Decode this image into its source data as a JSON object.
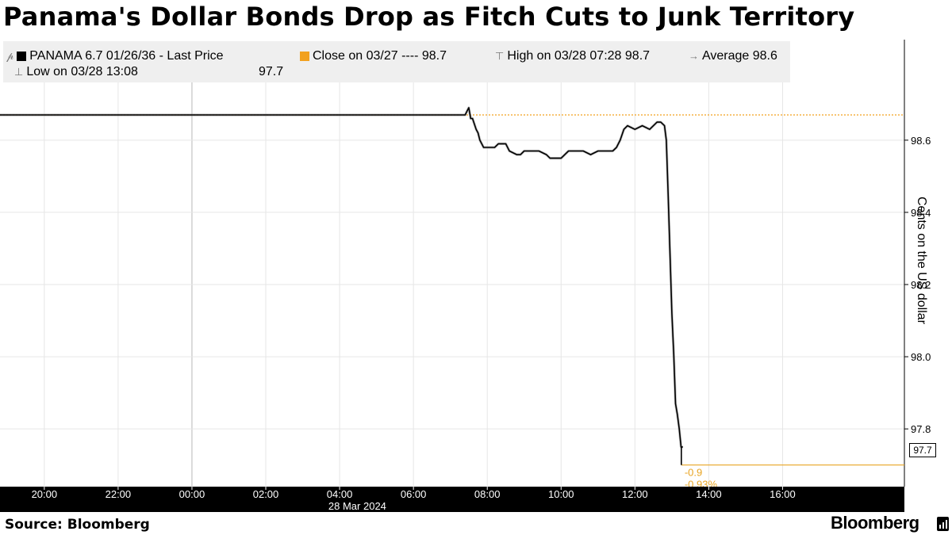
{
  "title": "Panama's Dollar Bonds Drop as Fitch Cuts to Junk Territory",
  "legend": {
    "last_price": "PANAMA 6.7 01/26/36 - Last Price",
    "close": "Close on 03/27 ---- 98.7",
    "high": "High on 03/28 07:28 98.7",
    "average": "Average 98.6",
    "low_label": "Low on 03/28 13:08",
    "low_value": "97.7"
  },
  "annotations": {
    "last_value": "97.7",
    "change_abs": "-0.9",
    "change_pct": "-0.93%"
  },
  "footer": {
    "source": "Source: Bloomberg",
    "brand": "Bloomberg"
  },
  "colors": {
    "price_line": "#000000",
    "close_line": "#f2a11f",
    "axis_band": "#000000",
    "legend_bg": "#efefef"
  },
  "chart_data": {
    "type": "line",
    "title": "Panama's Dollar Bonds Drop as Fitch Cuts to Junk Territory",
    "ylabel": "Cents on the US dollar",
    "xlabel": "",
    "date_label": "28 Mar 2024",
    "x_ticks": [
      "20:00",
      "22:00",
      "00:00",
      "02:00",
      "04:00",
      "06:00",
      "08:00",
      "10:00",
      "12:00",
      "14:00",
      "16:00"
    ],
    "y_ticks": [
      97.8,
      98.0,
      98.2,
      98.4,
      98.6
    ],
    "ylim": [
      97.64,
      98.76
    ],
    "xlim_hours": [
      -5.2,
      19.3
    ],
    "reference_lines": [
      {
        "name": "Close on 03/27",
        "value": 98.67
      }
    ],
    "series": [
      {
        "name": "PANAMA 6.7 01/26/36 - Last Price",
        "x_hours": [
          -5.2,
          7.4,
          7.5,
          7.55,
          7.6,
          7.7,
          7.75,
          7.8,
          7.9,
          8.0,
          8.2,
          8.3,
          8.5,
          8.6,
          8.8,
          8.9,
          9.0,
          9.2,
          9.4,
          9.6,
          9.7,
          9.9,
          10.0,
          10.2,
          10.4,
          10.6,
          10.8,
          11.0,
          11.2,
          11.4,
          11.5,
          11.6,
          11.7,
          11.8,
          12.0,
          12.2,
          12.4,
          12.5,
          12.6,
          12.7,
          12.8,
          12.85,
          12.9,
          13.0,
          13.05,
          13.1,
          13.15,
          13.2,
          13.25,
          13.3
        ],
        "values": [
          98.67,
          98.67,
          98.69,
          98.66,
          98.66,
          98.63,
          98.62,
          98.6,
          98.58,
          98.58,
          98.58,
          98.59,
          98.59,
          98.57,
          98.56,
          98.56,
          98.57,
          98.57,
          98.57,
          98.56,
          98.55,
          98.55,
          98.55,
          98.57,
          98.57,
          98.57,
          98.56,
          98.57,
          98.57,
          98.57,
          98.58,
          98.6,
          98.63,
          98.64,
          98.63,
          98.64,
          98.63,
          98.64,
          98.65,
          98.65,
          98.64,
          98.6,
          98.45,
          98.12,
          98.01,
          97.87,
          97.84,
          97.8,
          97.75,
          97.75
        ]
      }
    ],
    "last_value": 97.7,
    "change": -0.9,
    "change_pct": -0.93
  }
}
